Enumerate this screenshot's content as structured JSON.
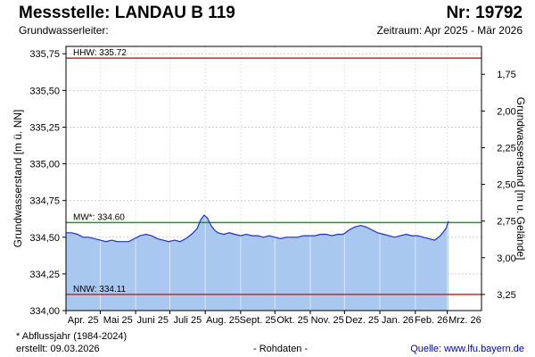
{
  "header": {
    "title": "Messstelle: LANDAU B 119",
    "number": "Nr: 19792",
    "aquifer": "Grundwasserleiter:",
    "period": "Zeitraum: Apr 2025 - Mär 2026"
  },
  "footer": {
    "note": "* Abflussjahr (1984-2024)",
    "created_label": "erstellt:",
    "created_date": "09.03.2026",
    "raw": "- Rohdaten -",
    "source_label": "Quelle:",
    "source_url": "www.lfu.bayern.de"
  },
  "colors": {
    "area_fill": "#a9c8f0",
    "series_line": "#1f2fd6",
    "hhw_line": "#e0201b",
    "mw_line": "#1a9a1a",
    "nnw_line": "#e0201b",
    "grid": "#cfcfcf"
  },
  "chart_data": {
    "type": "area",
    "ylabel": "Grundwasserstand [m ü. NN]",
    "y2label": "Grundwasserstand [m u. Gelände]",
    "ylim": [
      334.0,
      335.8
    ],
    "yticks": [
      334.0,
      334.25,
      334.5,
      334.75,
      335.0,
      335.25,
      335.5,
      335.75
    ],
    "ytick_labels": [
      "334,00",
      "334,25",
      "334,50",
      "334,75",
      "335,00",
      "335,25",
      "335,50",
      "335,75"
    ],
    "y2ticks": [
      1.75,
      2.0,
      2.25,
      2.5,
      2.75,
      3.0,
      3.25
    ],
    "y2tick_labels": [
      "1,75",
      "2,00",
      "2,25",
      "2,50",
      "2,75",
      "3,00",
      "3,25"
    ],
    "y2_reference_level": 337.36,
    "x_months": [
      "Apr. 25",
      "Mai 25",
      "Juni 25",
      "Juli 25",
      "Aug. 25",
      "Sept. 25",
      "Okt. 25",
      "Nov. 25",
      "Dez. 25",
      "Jan. 26",
      "Feb. 26",
      "Mrz. 26"
    ],
    "xlim": [
      "2025-04-01",
      "2026-03-31"
    ],
    "grid": true,
    "reference_lines": [
      {
        "key": "hhw",
        "label": "HHW: 335.72",
        "value": 335.72
      },
      {
        "key": "mw",
        "label": "MW*: 334.60",
        "value": 334.6
      },
      {
        "key": "nnw",
        "label": "NNW: 334.11",
        "value": 334.11
      }
    ],
    "series": [
      {
        "x": [
          "2025-04-01",
          "2025-04-06",
          "2025-04-11",
          "2025-04-16",
          "2025-04-21",
          "2025-04-26",
          "2025-05-01",
          "2025-05-06",
          "2025-05-11",
          "2025-05-16",
          "2025-05-21",
          "2025-05-26",
          "2025-05-31",
          "2025-06-05",
          "2025-06-10",
          "2025-06-15",
          "2025-06-20",
          "2025-06-25",
          "2025-06-30",
          "2025-07-05",
          "2025-07-10",
          "2025-07-15",
          "2025-07-20",
          "2025-07-25",
          "2025-07-28",
          "2025-07-31",
          "2025-08-03",
          "2025-08-06",
          "2025-08-09",
          "2025-08-12",
          "2025-08-17",
          "2025-08-22",
          "2025-08-27",
          "2025-09-01",
          "2025-09-06",
          "2025-09-11",
          "2025-09-16",
          "2025-09-21",
          "2025-09-26",
          "2025-10-01",
          "2025-10-06",
          "2025-10-11",
          "2025-10-16",
          "2025-10-21",
          "2025-10-26",
          "2025-10-31",
          "2025-11-05",
          "2025-11-10",
          "2025-11-15",
          "2025-11-20",
          "2025-11-25",
          "2025-11-30",
          "2025-12-05",
          "2025-12-10",
          "2025-12-15",
          "2025-12-20",
          "2025-12-25",
          "2025-12-30",
          "2026-01-04",
          "2026-01-09",
          "2026-01-14",
          "2026-01-19",
          "2026-01-24",
          "2026-01-29",
          "2026-02-03",
          "2026-02-08",
          "2026-02-13",
          "2026-02-18",
          "2026-02-23",
          "2026-02-28",
          "2026-03-02"
        ],
        "y": [
          334.53,
          334.53,
          334.52,
          334.5,
          334.5,
          334.49,
          334.48,
          334.47,
          334.48,
          334.47,
          334.47,
          334.47,
          334.49,
          334.51,
          334.52,
          334.51,
          334.49,
          334.48,
          334.47,
          334.48,
          334.47,
          334.49,
          334.52,
          334.56,
          334.62,
          334.65,
          334.63,
          334.58,
          334.55,
          334.53,
          334.52,
          334.53,
          334.52,
          334.51,
          334.52,
          334.51,
          334.51,
          334.5,
          334.51,
          334.5,
          334.49,
          334.5,
          334.5,
          334.5,
          334.51,
          334.51,
          334.51,
          334.52,
          334.52,
          334.51,
          334.52,
          334.52,
          334.55,
          334.57,
          334.58,
          334.57,
          334.55,
          334.53,
          334.52,
          334.51,
          334.5,
          334.51,
          334.52,
          334.51,
          334.51,
          334.5,
          334.49,
          334.48,
          334.51,
          334.56,
          334.61
        ]
      }
    ]
  }
}
